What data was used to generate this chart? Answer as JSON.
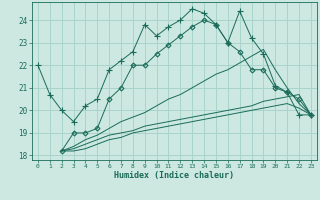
{
  "xlabel": "Humidex (Indice chaleur)",
  "bg_color": "#cce8e0",
  "line_color": "#1a6b5a",
  "grid_color": "#a8d4cc",
  "xlim": [
    -0.5,
    23.5
  ],
  "ylim": [
    17.8,
    24.8
  ],
  "yticks": [
    18,
    19,
    20,
    21,
    22,
    23,
    24
  ],
  "xticks": [
    0,
    1,
    2,
    3,
    4,
    5,
    6,
    7,
    8,
    9,
    10,
    11,
    12,
    13,
    14,
    15,
    16,
    17,
    18,
    19,
    20,
    21,
    22,
    23
  ],
  "series": [
    {
      "x": [
        0,
        1,
        2,
        3,
        4,
        5,
        6,
        7,
        8,
        9,
        10,
        11,
        12,
        13,
        14,
        15,
        16,
        17,
        18,
        19,
        20,
        21,
        22,
        23
      ],
      "y": [
        22.0,
        20.7,
        20.0,
        19.5,
        20.2,
        20.5,
        21.8,
        22.2,
        22.6,
        23.8,
        23.3,
        23.7,
        24.0,
        24.5,
        24.3,
        23.8,
        23.0,
        24.4,
        23.2,
        22.5,
        21.1,
        20.8,
        19.8,
        19.8
      ],
      "marker": "+"
    },
    {
      "x": [
        2,
        3,
        4,
        5,
        6,
        7,
        8,
        9,
        10,
        11,
        12,
        13,
        14,
        15,
        16,
        17,
        18,
        19,
        20,
        21,
        22,
        23
      ],
      "y": [
        18.2,
        19.0,
        19.0,
        19.2,
        20.5,
        21.0,
        22.0,
        22.0,
        22.5,
        22.9,
        23.3,
        23.7,
        24.0,
        23.8,
        23.0,
        22.6,
        21.8,
        21.8,
        21.0,
        20.8,
        20.5,
        19.8
      ],
      "marker": "D"
    },
    {
      "x": [
        2,
        3,
        4,
        5,
        6,
        7,
        8,
        9,
        10,
        11,
        12,
        13,
        14,
        15,
        16,
        17,
        18,
        19,
        20,
        21,
        22,
        23
      ],
      "y": [
        18.2,
        18.4,
        18.7,
        18.9,
        19.2,
        19.5,
        19.7,
        19.9,
        20.2,
        20.5,
        20.7,
        21.0,
        21.3,
        21.6,
        21.8,
        22.1,
        22.4,
        22.7,
        21.8,
        21.0,
        20.3,
        19.8
      ],
      "marker": null
    },
    {
      "x": [
        2,
        3,
        4,
        5,
        6,
        7,
        8,
        9,
        10,
        11,
        12,
        13,
        14,
        15,
        16,
        17,
        18,
        19,
        20,
        21,
        22,
        23
      ],
      "y": [
        18.2,
        18.3,
        18.5,
        18.7,
        18.9,
        19.0,
        19.1,
        19.3,
        19.4,
        19.5,
        19.6,
        19.7,
        19.8,
        19.9,
        20.0,
        20.1,
        20.2,
        20.4,
        20.5,
        20.6,
        20.7,
        19.8
      ],
      "marker": null
    },
    {
      "x": [
        2,
        3,
        4,
        5,
        6,
        7,
        8,
        9,
        10,
        11,
        12,
        13,
        14,
        15,
        16,
        17,
        18,
        19,
        20,
        21,
        22,
        23
      ],
      "y": [
        18.2,
        18.2,
        18.3,
        18.5,
        18.7,
        18.8,
        19.0,
        19.1,
        19.2,
        19.3,
        19.4,
        19.5,
        19.6,
        19.7,
        19.8,
        19.9,
        20.0,
        20.1,
        20.2,
        20.3,
        20.1,
        19.8
      ],
      "marker": null
    }
  ]
}
